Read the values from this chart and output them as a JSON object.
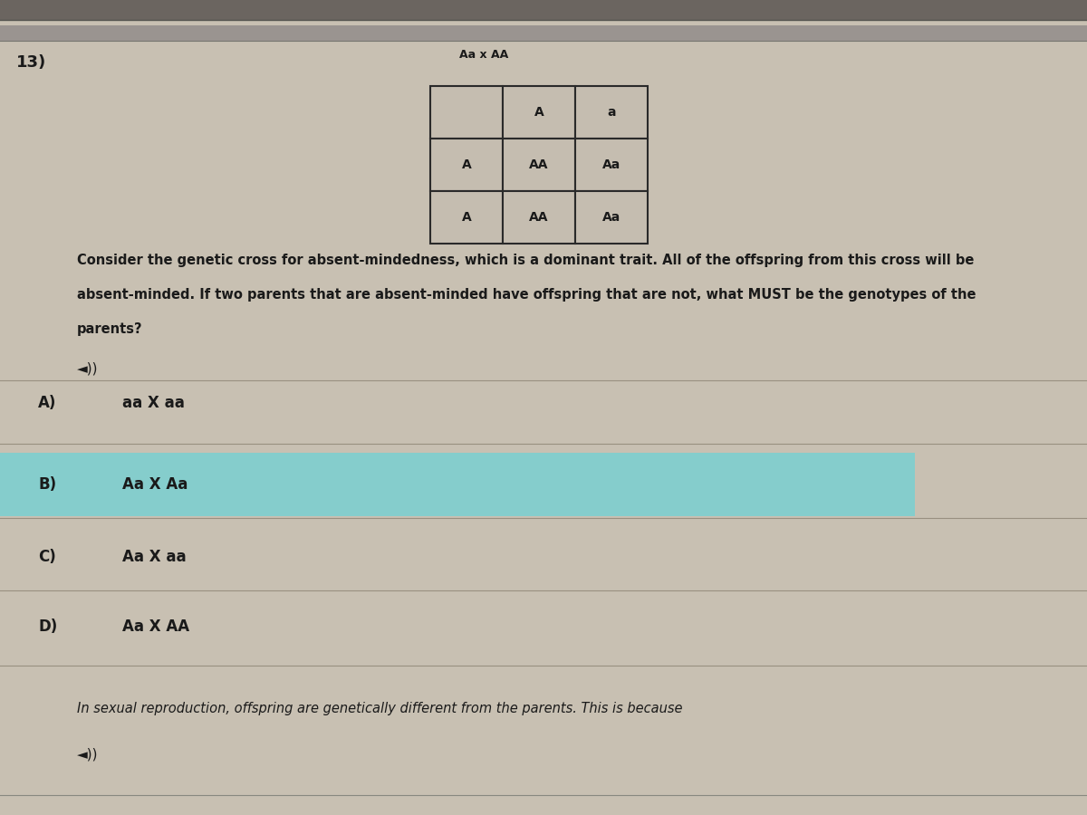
{
  "bg_color": "#c5bdb0",
  "page_bg": "#c8c0b2",
  "question_number": "13)",
  "punnett_title": "Aa x AA",
  "punnett_header_row": [
    "",
    "A",
    "a"
  ],
  "punnett_row1": [
    "A",
    "AA",
    "Aa"
  ],
  "punnett_row2": [
    "A",
    "AA",
    "Aa"
  ],
  "question_text_line1": "Consider the genetic cross for absent-mindedness, which is a dominant trait. All of the offspring from this cross will be",
  "question_text_line2": "absent-minded. If two parents that are absent-minded have offspring that are not, what MUST be the genotypes of the",
  "question_text_line3": "parents?",
  "speaker_icon": "◄))",
  "answer_A_label": "A)",
  "answer_A_text": "aa X aa",
  "answer_B_label": "B)",
  "answer_B_text": "Aa X Aa",
  "answer_C_label": "C)",
  "answer_C_text": "Aa X aa",
  "answer_D_label": "D)",
  "answer_D_text": "Aa X AA",
  "footer_text": "In sexual reproduction, offspring are genetically different from the parents. This is because",
  "footer_speaker": "◄))",
  "top_strip_color": "#6b6560",
  "top_strip2_color": "#9a9490",
  "grid_color": "#2a2a2a",
  "cell_bg": "#c5bdb0",
  "text_color": "#1a1a1a",
  "highlight_color": "#7ecfcf",
  "highlight_alpha": 0.9,
  "line_color": "#999080"
}
